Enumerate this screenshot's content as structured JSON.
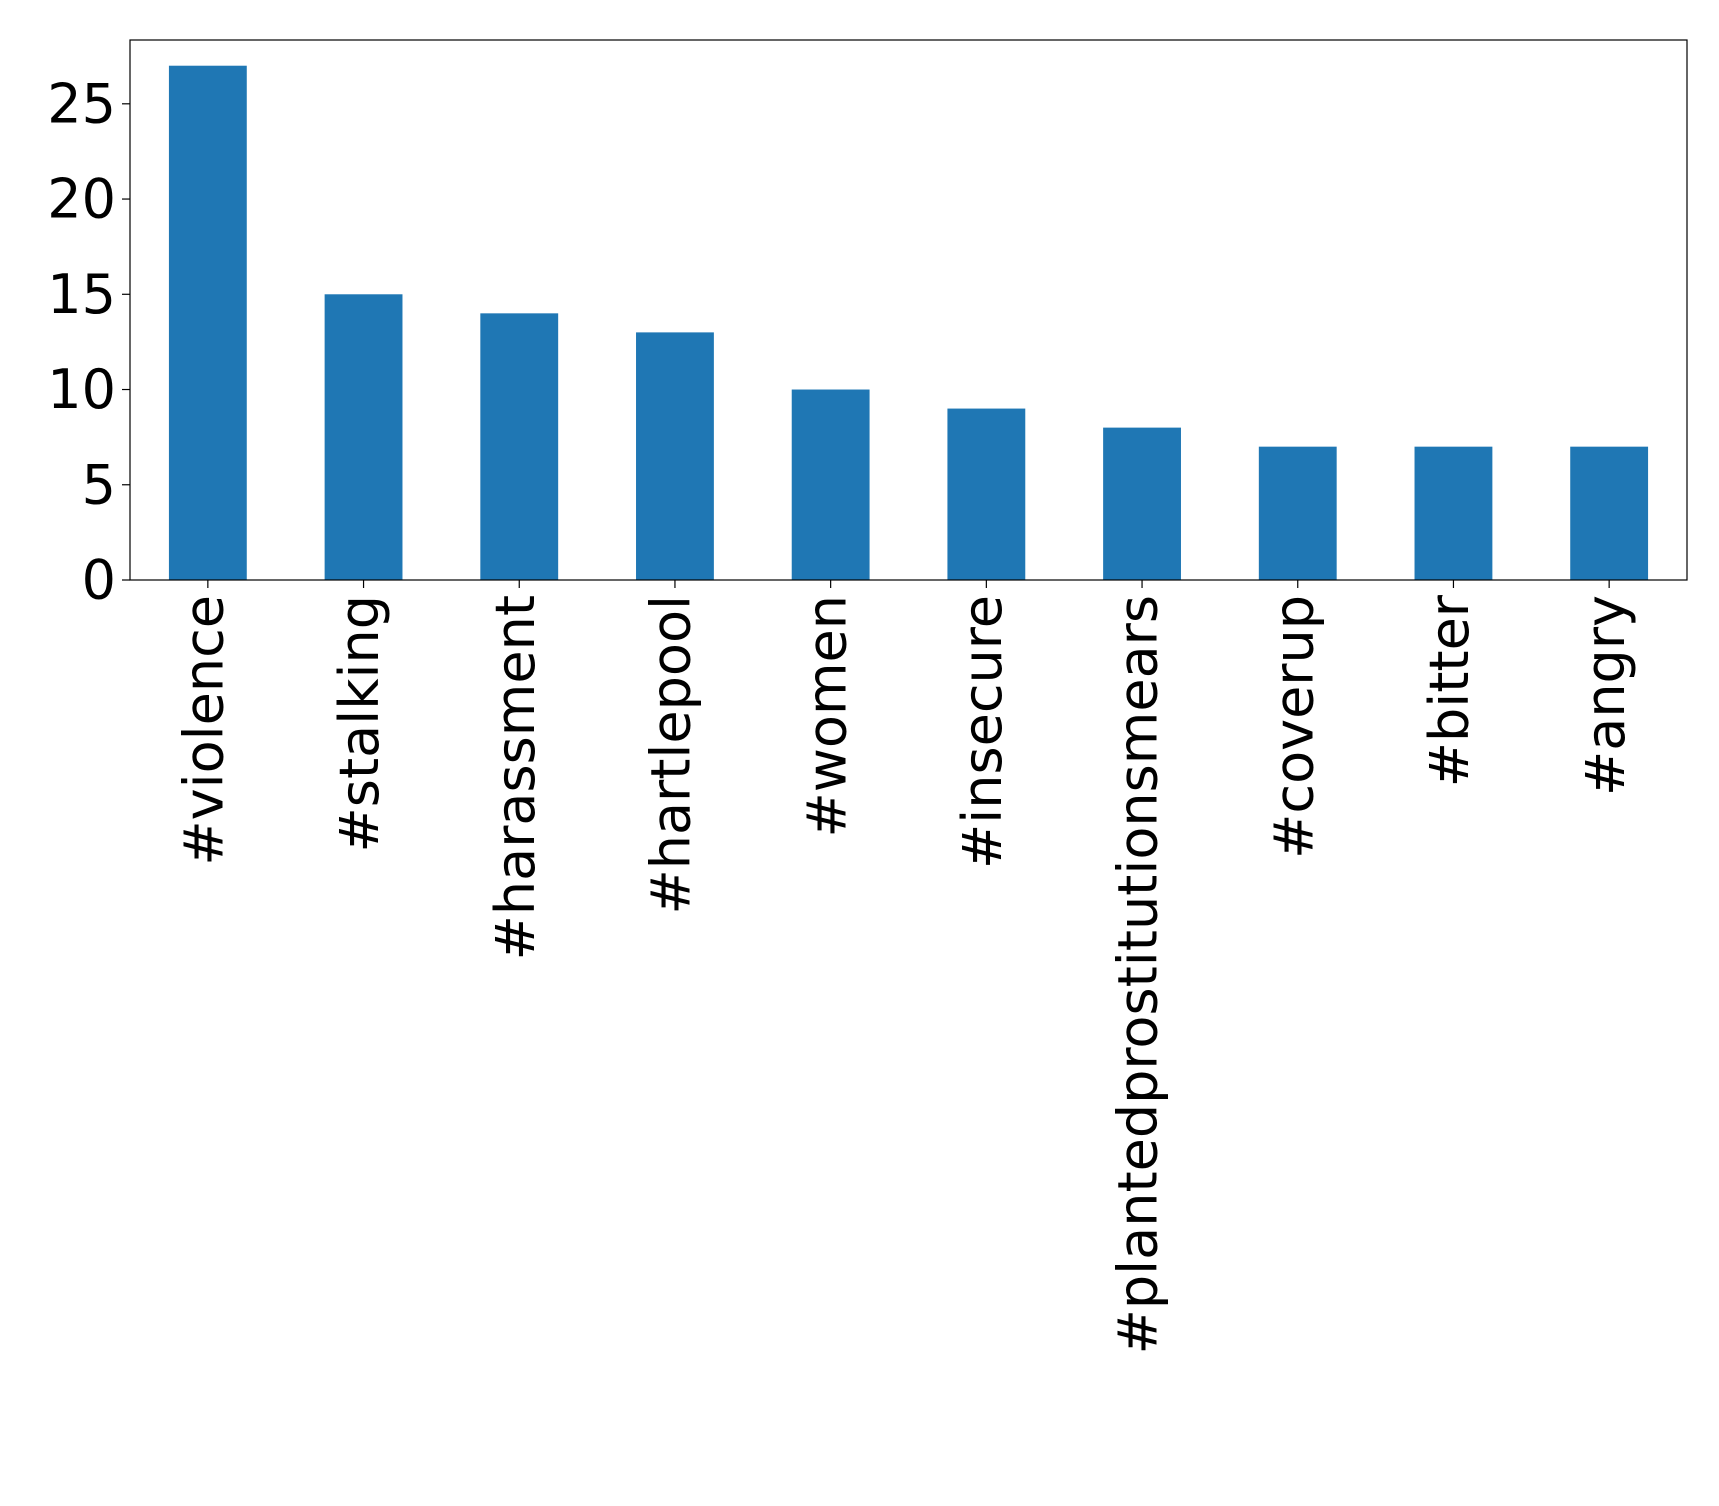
{
  "chart_data": {
    "type": "bar",
    "categories": [
      "#violence",
      "#stalking",
      "#harassment",
      "#hartlepool",
      "#women",
      "#insecure",
      "#plantedprostitutionsmears",
      "#coverup",
      "#bitter",
      "#angry"
    ],
    "values": [
      27,
      15,
      14,
      13,
      10,
      9,
      8,
      7,
      7,
      7
    ],
    "color": "#1f77b4",
    "ylim": [
      0,
      28.35
    ],
    "yticks": [
      0,
      5,
      10,
      15,
      20,
      25
    ],
    "grid": false
  }
}
